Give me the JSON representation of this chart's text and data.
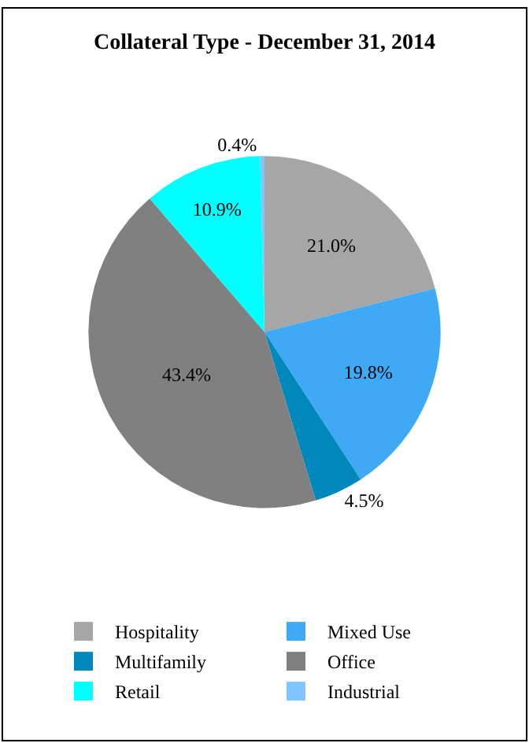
{
  "chart_data": {
    "type": "pie",
    "title": "Collateral Type - December 31, 2014",
    "categories": [
      "Hospitality",
      "Mixed Use",
      "Multifamily",
      "Office",
      "Retail",
      "Industrial"
    ],
    "values": [
      21.0,
      19.8,
      4.5,
      43.4,
      10.9,
      0.4
    ],
    "colors": [
      "#a6a6a6",
      "#3fa9f5",
      "#0088bb",
      "#808080",
      "#00ffff",
      "#80c5ff"
    ],
    "value_labels": [
      "21.0%",
      "19.8%",
      "4.5%",
      "43.4%",
      "10.9%",
      "0.4%"
    ],
    "legend": "bottom"
  }
}
